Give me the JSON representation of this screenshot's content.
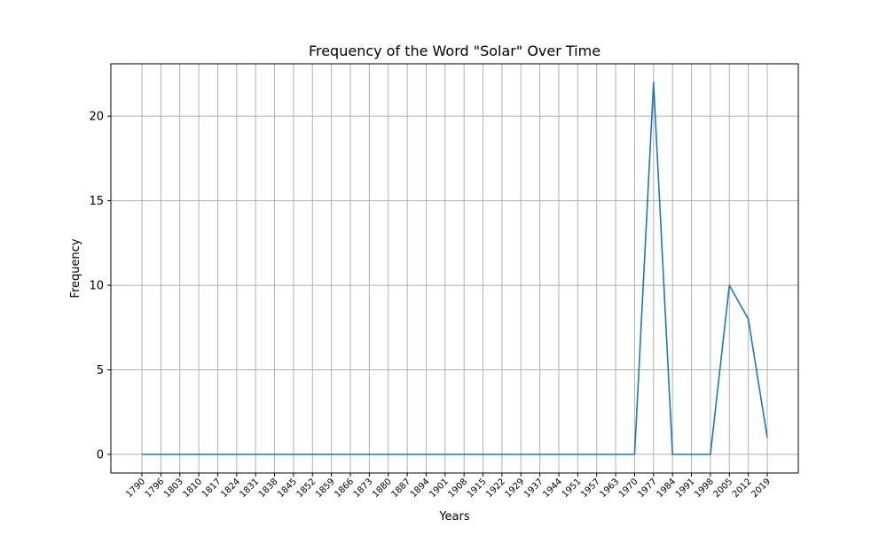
{
  "chart_data": {
    "type": "line",
    "title": "Frequency of the Word \"Solar\" Over Time",
    "xlabel": "Years",
    "ylabel": "Frequency",
    "categories": [
      "1790",
      "1796",
      "1803",
      "1810",
      "1817",
      "1824",
      "1831",
      "1838",
      "1845",
      "1852",
      "1859",
      "1866",
      "1873",
      "1880",
      "1887",
      "1894",
      "1901",
      "1908",
      "1915",
      "1922",
      "1929",
      "1937",
      "1944",
      "1951",
      "1957",
      "1963",
      "1970",
      "1977",
      "1984",
      "1991",
      "1998",
      "2005",
      "2012",
      "2019"
    ],
    "series": [
      {
        "name": "",
        "color": "#1f77b4",
        "values": [
          0,
          0,
          0,
          0,
          0,
          0,
          0,
          0,
          0,
          0,
          0,
          0,
          0,
          0,
          0,
          0,
          0,
          0,
          0,
          0,
          0,
          0,
          0,
          0,
          0,
          0,
          0,
          22,
          0,
          0,
          0,
          10,
          8,
          1
        ]
      }
    ],
    "yticks": [
      0,
      5,
      10,
      15,
      20
    ],
    "ylim": [
      -1.1,
      23.1
    ],
    "grid": true,
    "legend": "none"
  }
}
